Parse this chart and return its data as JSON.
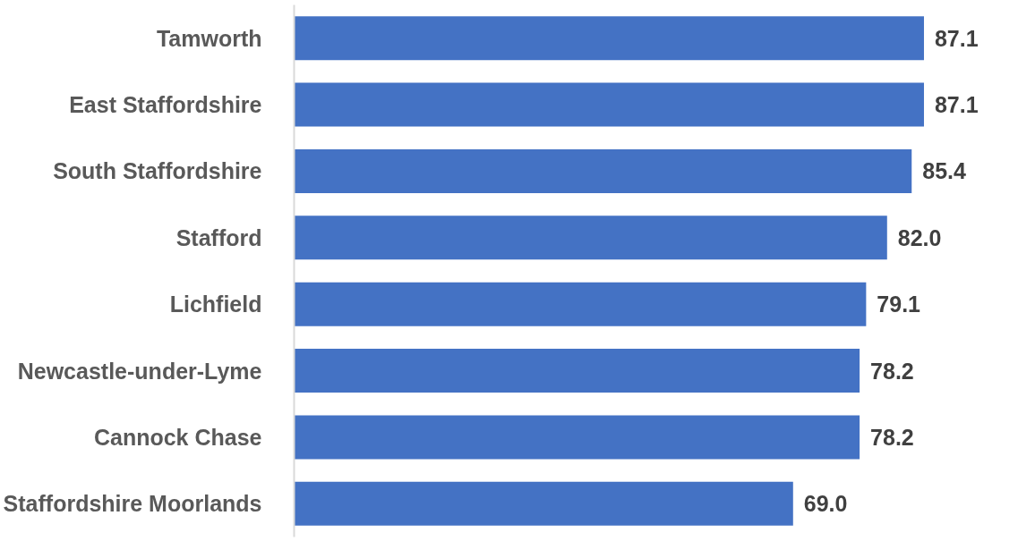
{
  "chart_data": {
    "type": "bar",
    "orientation": "horizontal",
    "categories": [
      "Tamworth",
      "East Staffordshire",
      "South Staffordshire",
      "Stafford",
      "Lichfield",
      "Newcastle-under-Lyme",
      "Cannock Chase",
      "Staffordshire Moorlands"
    ],
    "values": [
      87.1,
      87.1,
      85.4,
      82.0,
      79.1,
      78.2,
      78.2,
      69.0
    ],
    "value_labels": [
      "87.1",
      "87.1",
      "85.4",
      "82.0",
      "79.1",
      "78.2",
      "78.2",
      "69.0"
    ],
    "color": "#4472c4",
    "tick_labels": "y"
  }
}
